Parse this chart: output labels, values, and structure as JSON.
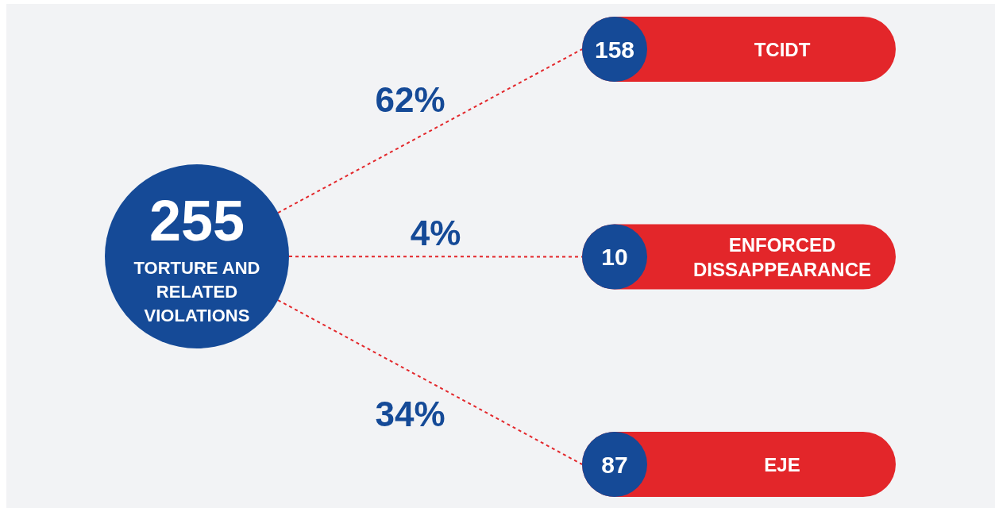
{
  "chart_data": {
    "type": "other",
    "title": "TORTURE AND RELATED VIOLATIONS",
    "totals": [
      "255"
    ],
    "categories": [
      "TCIDT",
      "ENFORCED DISSAPPEARANCE",
      "EJE"
    ],
    "values": [
      158,
      10,
      87
    ],
    "data_labels": true,
    "annotations": [
      "62%",
      "4%",
      "34%"
    ]
  }
}
